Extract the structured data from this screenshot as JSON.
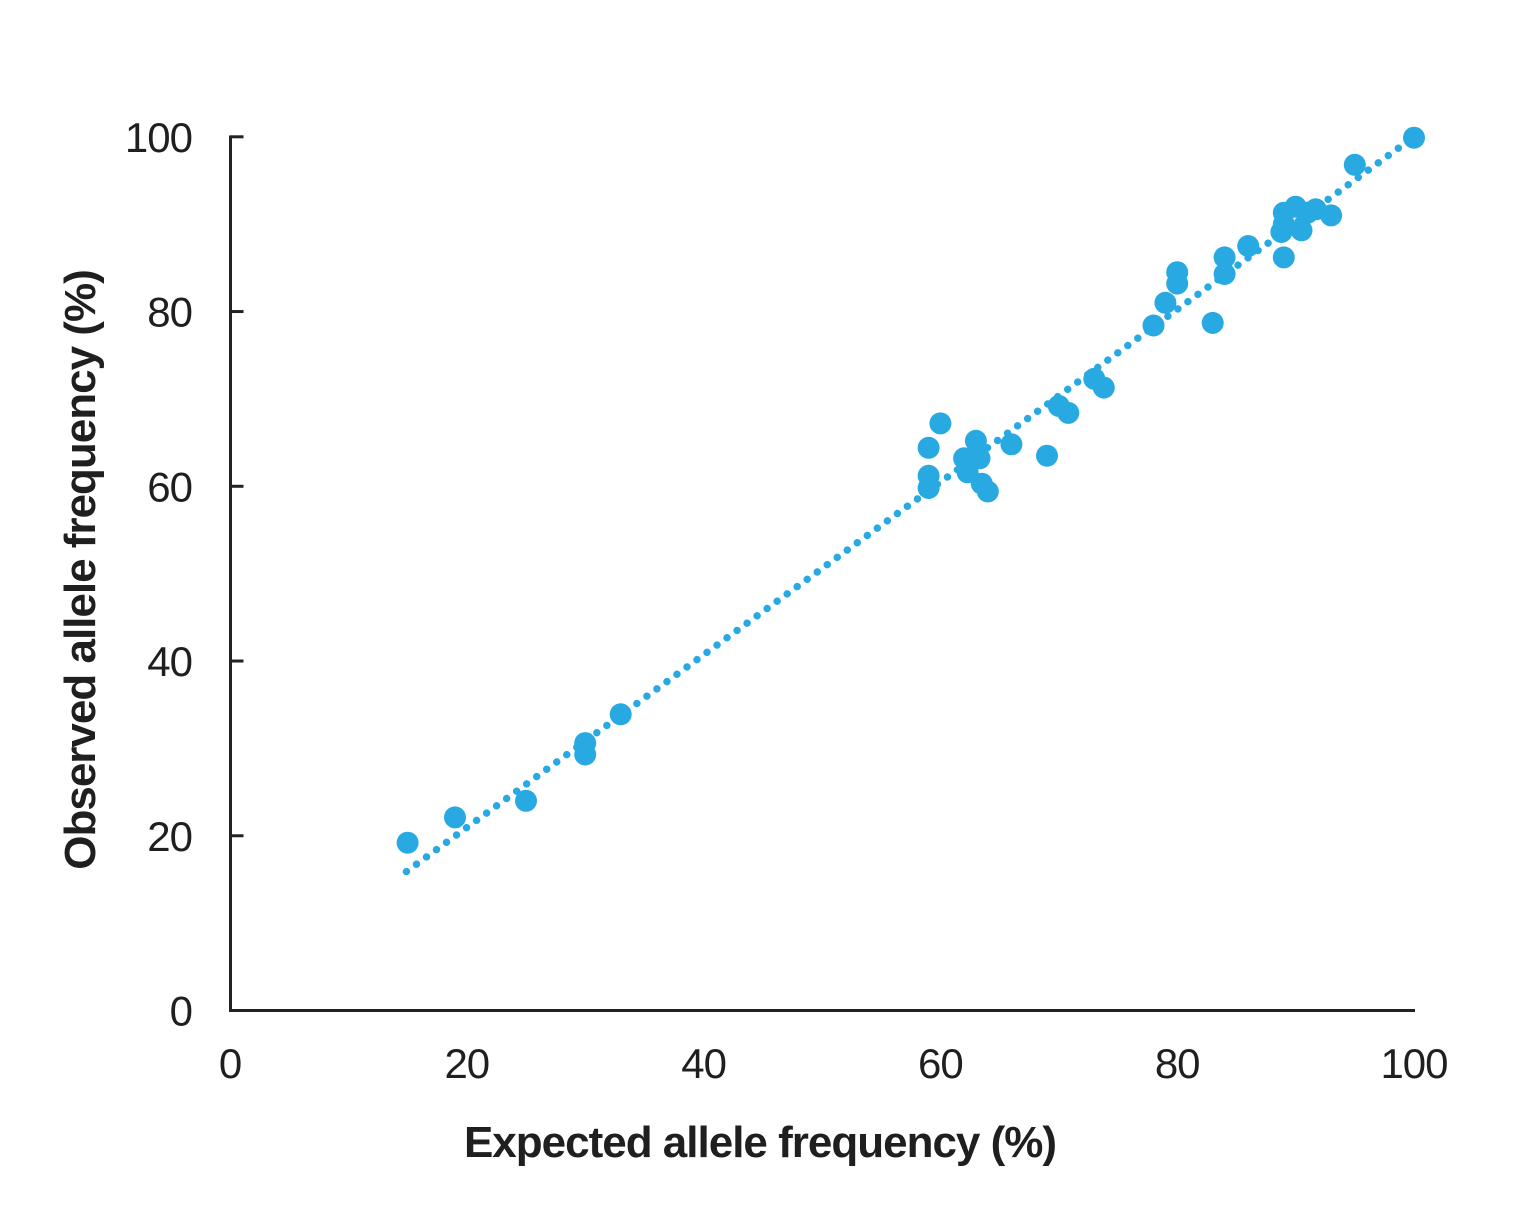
{
  "colors": {
    "accent": "#29A9E1",
    "axis": "#222222",
    "text": "#1f1f1f",
    "background": "#ffffff"
  },
  "chart_data": {
    "type": "scatter",
    "title": "",
    "xlabel": "Expected allele frequency (%)",
    "ylabel": "Observed allele frequency (%)",
    "xlim": [
      0,
      100
    ],
    "ylim": [
      0,
      100
    ],
    "x_ticks": [
      0,
      20,
      40,
      60,
      80,
      100
    ],
    "y_ticks": [
      0,
      20,
      40,
      60,
      80,
      100
    ],
    "grid": false,
    "legend": false,
    "marker_color": "#29A9E1",
    "marker_radius_px": 11,
    "trendline": {
      "style": "dotted",
      "color": "#29A9E1",
      "x1": 14.9,
      "y1": 15.9,
      "x2": 100.0,
      "y2": 100.0
    },
    "points": [
      [
        15,
        19.2
      ],
      [
        19,
        22.1
      ],
      [
        25,
        24.0
      ],
      [
        30,
        30.6
      ],
      [
        30,
        29.3
      ],
      [
        33,
        33.9
      ],
      [
        59,
        64.4
      ],
      [
        60,
        67.2
      ],
      [
        59,
        61.2
      ],
      [
        59,
        59.8
      ],
      [
        63,
        65.2
      ],
      [
        62,
        63.2
      ],
      [
        63.3,
        63.2
      ],
      [
        62.3,
        61.6
      ],
      [
        63.5,
        60.3
      ],
      [
        64,
        59.4
      ],
      [
        66,
        64.8
      ],
      [
        69,
        63.5
      ],
      [
        70,
        69.2
      ],
      [
        70.8,
        68.4
      ],
      [
        73,
        72.3
      ],
      [
        73.8,
        71.3
      ],
      [
        78,
        78.4
      ],
      [
        79,
        81.0
      ],
      [
        80,
        84.5
      ],
      [
        80,
        83.2
      ],
      [
        83,
        78.7
      ],
      [
        84,
        86.2
      ],
      [
        84,
        84.3
      ],
      [
        86,
        87.5
      ],
      [
        88.8,
        89.1
      ],
      [
        89,
        90.0
      ],
      [
        89,
        91.3
      ],
      [
        90,
        92.0
      ],
      [
        90.5,
        89.3
      ],
      [
        91,
        91.3
      ],
      [
        91.7,
        91.7
      ],
      [
        89,
        86.2
      ],
      [
        93,
        91.0
      ],
      [
        95,
        96.8
      ],
      [
        100,
        99.9
      ]
    ]
  }
}
